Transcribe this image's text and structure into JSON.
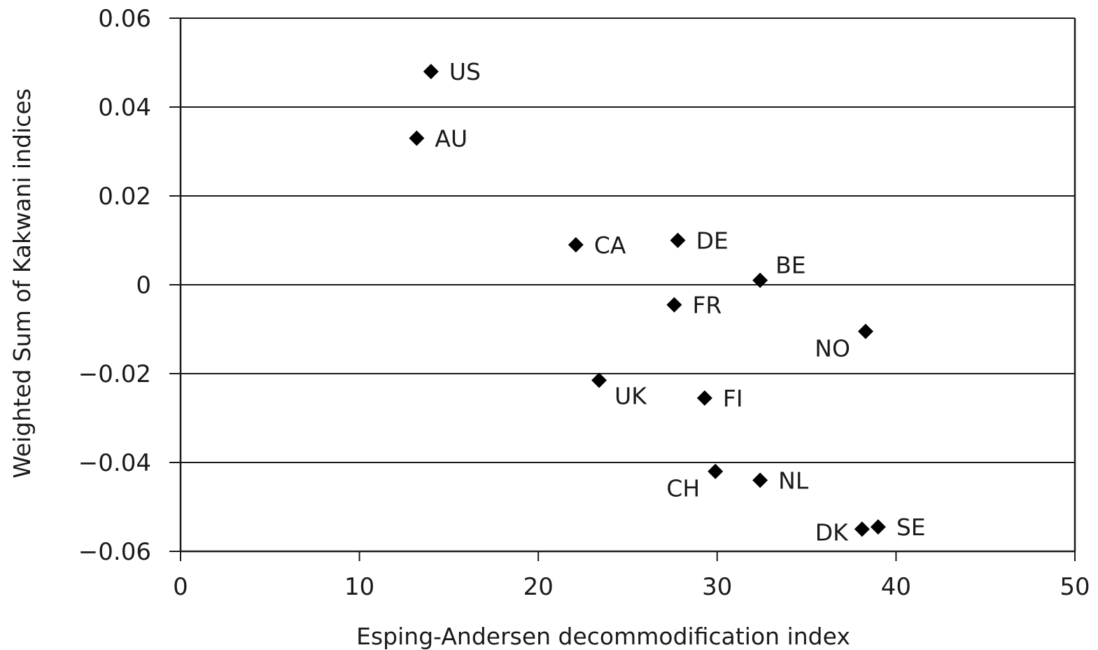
{
  "chart_data": {
    "type": "scatter",
    "xlabel": "Esping-Andersen decommodification index",
    "ylabel": "Weighted Sum of Kakwani indices",
    "xlim": [
      0,
      50
    ],
    "ylim": [
      -0.06,
      0.06
    ],
    "x_ticks": [
      0,
      10,
      20,
      30,
      40,
      50
    ],
    "x_tick_labels": [
      "0",
      "10",
      "20",
      "30",
      "40",
      "50"
    ],
    "y_ticks": [
      0.06,
      0.04,
      0.02,
      0,
      -0.02,
      -0.04,
      -0.06
    ],
    "y_tick_labels": [
      "0.06",
      "0.04",
      "0.02",
      "0",
      "−0.02",
      "−0.04",
      "−0.06"
    ],
    "grid": "horizontal",
    "marker": "diamond",
    "colors": {
      "marker": "#000000",
      "axis": "#1a1a1a"
    },
    "points": [
      {
        "label": "US",
        "x": 14.0,
        "y": 0.048,
        "label_pos": "right"
      },
      {
        "label": "AU",
        "x": 13.2,
        "y": 0.033,
        "label_pos": "right"
      },
      {
        "label": "CA",
        "x": 22.1,
        "y": 0.009,
        "label_pos": "right"
      },
      {
        "label": "DE",
        "x": 27.8,
        "y": 0.01,
        "label_pos": "right"
      },
      {
        "label": "BE",
        "x": 32.4,
        "y": 0.001,
        "label_pos": "upper-right"
      },
      {
        "label": "FR",
        "x": 27.6,
        "y": -0.0045,
        "label_pos": "right"
      },
      {
        "label": "NO",
        "x": 38.3,
        "y": -0.0105,
        "label_pos": "lower-left"
      },
      {
        "label": "UK",
        "x": 23.4,
        "y": -0.0215,
        "label_pos": "lower-right"
      },
      {
        "label": "FI",
        "x": 29.3,
        "y": -0.0255,
        "label_pos": "right"
      },
      {
        "label": "CH",
        "x": 29.9,
        "y": -0.042,
        "label_pos": "lower-left"
      },
      {
        "label": "NL",
        "x": 32.4,
        "y": -0.044,
        "label_pos": "right"
      },
      {
        "label": "DK",
        "x": 38.1,
        "y": -0.055,
        "label_pos": "left"
      },
      {
        "label": "SE",
        "x": 39.0,
        "y": -0.0545,
        "label_pos": "right"
      }
    ]
  }
}
